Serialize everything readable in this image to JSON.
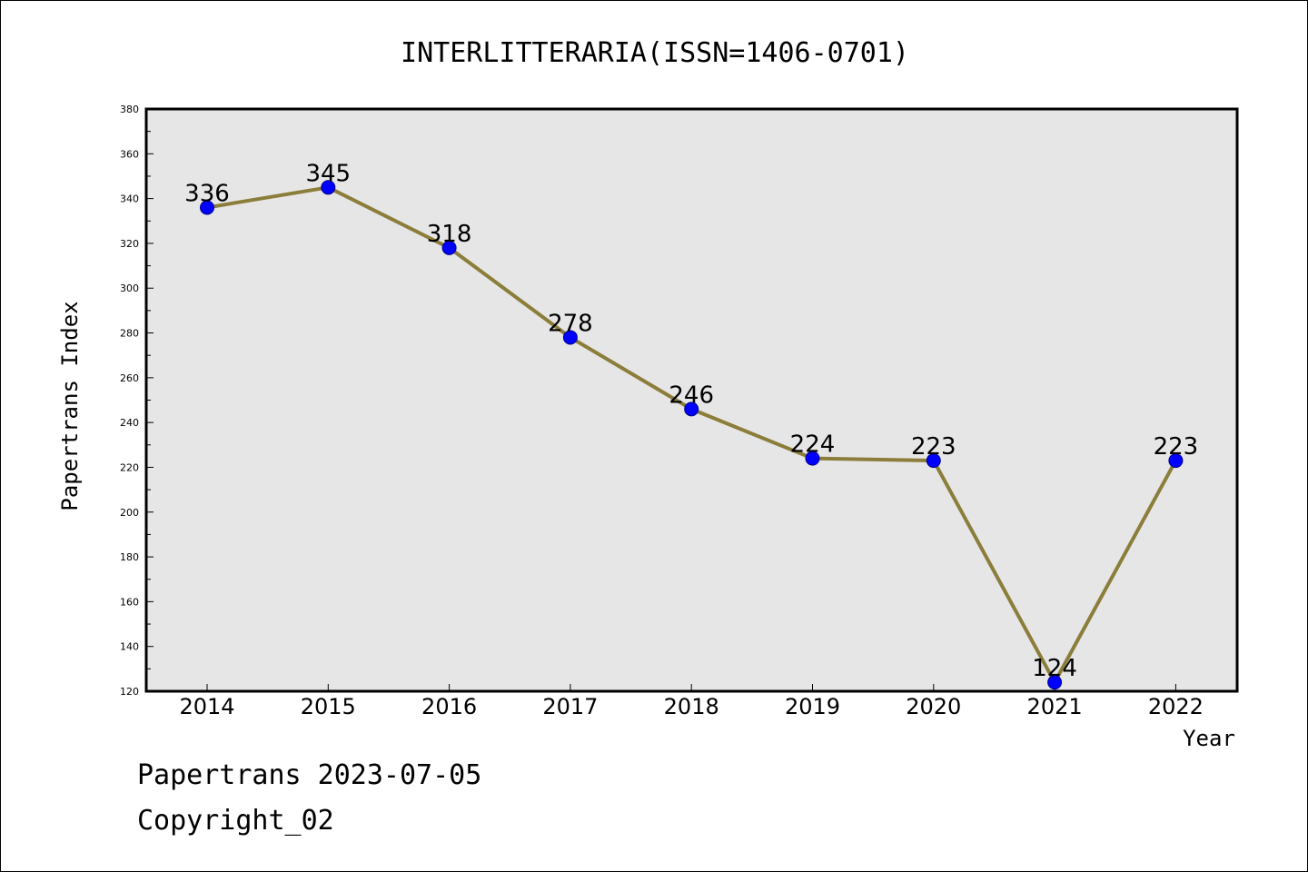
{
  "chart_data": {
    "type": "line",
    "title": "INTERLITTERARIA(ISSN=1406-0701)",
    "xlabel": "Year",
    "ylabel": "Papertrans Index",
    "categories": [
      "2014",
      "2015",
      "2016",
      "2017",
      "2018",
      "2019",
      "2020",
      "2021",
      "2022"
    ],
    "series": [
      {
        "values": [
          336,
          345,
          318,
          278,
          246,
          224,
          223,
          124,
          223
        ]
      }
    ],
    "ylim": [
      120,
      380
    ],
    "yticks": [
      120,
      140,
      160,
      180,
      200,
      220,
      240,
      260,
      280,
      300,
      320,
      340,
      360,
      380
    ],
    "line_color": "#8b7d3a",
    "marker_color": "#0000ff",
    "plot_background": "#e6e6e6",
    "grid": false,
    "data_labels": true
  },
  "footer": {
    "line1": "Papertrans 2023-07-05",
    "line2": "Copyright_02"
  }
}
